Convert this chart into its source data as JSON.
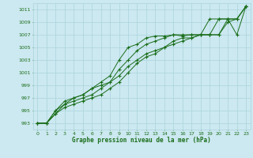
{
  "title": "Graphe pression niveau de la mer (hPa)",
  "bg_color": "#cce8f0",
  "grid_color": "#aad4dc",
  "line_color": "#1a6e1a",
  "marker_color": "#1a6e1a",
  "xlim": [
    -0.5,
    23.5
  ],
  "ylim": [
    992,
    1012
  ],
  "xticks": [
    0,
    1,
    2,
    3,
    4,
    5,
    6,
    7,
    8,
    9,
    10,
    11,
    12,
    13,
    14,
    15,
    16,
    17,
    18,
    19,
    20,
    21,
    22,
    23
  ],
  "yticks": [
    993,
    995,
    997,
    999,
    1001,
    1003,
    1005,
    1007,
    1009,
    1011
  ],
  "series": [
    [
      993.0,
      993.0,
      995.0,
      996.5,
      997.0,
      997.5,
      998.5,
      999.5,
      1000.5,
      1003.0,
      1005.0,
      1005.5,
      1006.5,
      1006.8,
      1006.8,
      1007.0,
      1006.8,
      1007.0,
      1007.0,
      1009.5,
      1009.5,
      1009.5,
      1007.0,
      1011.5
    ],
    [
      993.0,
      993.0,
      995.0,
      996.0,
      996.5,
      997.0,
      997.5,
      998.5,
      999.5,
      1001.5,
      1003.0,
      1004.5,
      1005.5,
      1006.0,
      1006.5,
      1007.0,
      1007.0,
      1007.0,
      1007.0,
      1007.0,
      1009.5,
      1009.5,
      1009.5,
      1011.5
    ],
    [
      993.0,
      993.0,
      994.5,
      996.0,
      997.0,
      997.5,
      998.5,
      999.0,
      999.5,
      1000.5,
      1002.0,
      1003.0,
      1004.0,
      1004.5,
      1005.0,
      1006.0,
      1006.5,
      1006.5,
      1007.0,
      1007.0,
      1007.0,
      1009.5,
      1009.5,
      1011.5
    ],
    [
      993.0,
      993.0,
      994.5,
      995.5,
      996.0,
      996.5,
      997.0,
      997.5,
      998.5,
      999.5,
      1001.0,
      1002.5,
      1003.5,
      1004.0,
      1005.0,
      1005.5,
      1006.0,
      1006.5,
      1007.0,
      1007.0,
      1007.0,
      1009.0,
      1009.5,
      1011.5
    ]
  ]
}
